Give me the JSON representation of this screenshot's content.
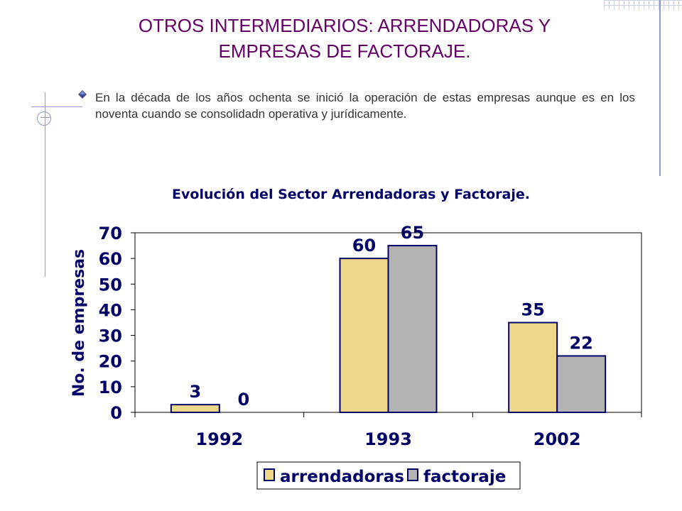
{
  "slide": {
    "title_line1": "OTROS INTERMEDIARIOS: ARRENDADORAS Y",
    "title_line2": "EMPRESAS DE FACTORAJE.",
    "bullet_text": "En la década de los años ochenta se inició la operación de estas empresas aunque es en los noventa cuando se consolidadn operativa y jurídicamente.",
    "bullet_icon": "diamond-bullet-icon"
  },
  "colors": {
    "title": "#660066",
    "arrendadoras": "#EDD88A",
    "factoraje": "#B3B3B3",
    "bar_border": "#000066",
    "chart_text": "#000066"
  },
  "chart_data": {
    "type": "bar",
    "title": "Evolución del Sector Arrendadoras y Factoraje.",
    "ylabel": "No. de empresas",
    "xlabel": "",
    "categories": [
      "1992",
      "1993",
      "2002"
    ],
    "series": [
      {
        "name": "arrendadoras",
        "values": [
          3,
          60,
          35
        ]
      },
      {
        "name": "factoraje",
        "values": [
          0,
          65,
          22
        ]
      }
    ],
    "ylim": [
      0,
      70
    ],
    "yticks": [
      0,
      10,
      20,
      30,
      40,
      50,
      60,
      70
    ],
    "data_labels": true,
    "grid": false,
    "legend_position": "bottom"
  }
}
